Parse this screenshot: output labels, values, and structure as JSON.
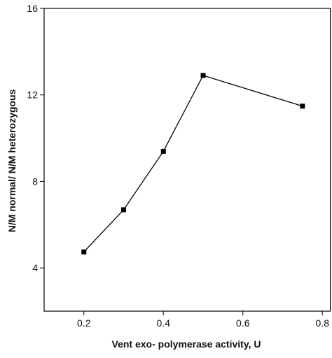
{
  "chart_data": {
    "type": "line",
    "x_label": "Vent exo- polymerase activity, U",
    "y_label": "N/M normal/ N/M heterozygous",
    "x": [
      0.2,
      0.3,
      0.4,
      0.5,
      0.75
    ],
    "series": [
      {
        "color": "#000000",
        "values": [
          4.74,
          6.69,
          9.39,
          12.9,
          11.48
        ]
      }
    ],
    "xlim": [
      0.1,
      0.82
    ],
    "xticks": [
      0.2,
      0.4,
      0.6,
      0.8
    ],
    "ylim": [
      2,
      16
    ],
    "yticks": [
      4,
      8,
      12,
      16
    ]
  }
}
